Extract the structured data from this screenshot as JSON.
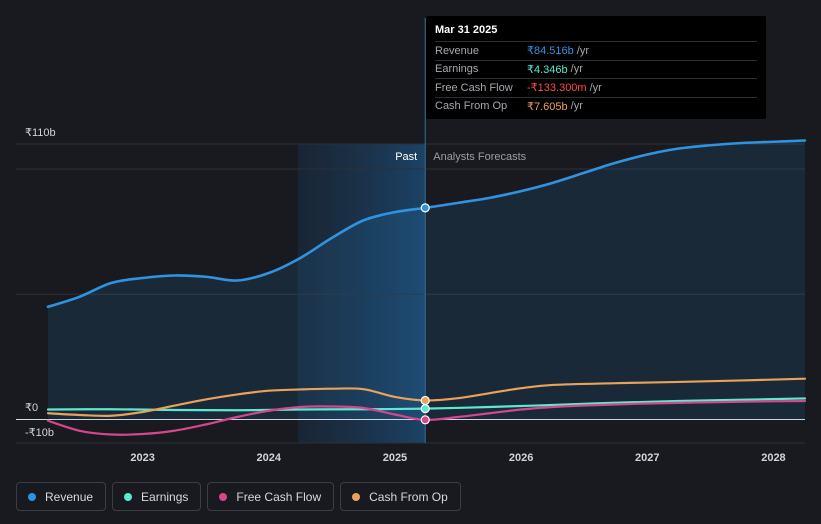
{
  "chart_data": {
    "type": "line",
    "currency_unit": "billions INR",
    "y_tick_labels": [
      "₹110b",
      "₹0",
      "-₹10b"
    ],
    "y_ticks": [
      110,
      0,
      -10
    ],
    "ylim": [
      -11,
      111
    ],
    "xlim": [
      2022.25,
      2028.25
    ],
    "x_tick_labels": [
      "2023",
      "2024",
      "2025",
      "2026",
      "2027",
      "2028"
    ],
    "x_ticks": [
      2023,
      2024,
      2025,
      2026,
      2027,
      2028
    ],
    "past_label": "Past",
    "forecast_label": "Analysts Forecasts",
    "divider_x": 2025.24,
    "past_shade_start_x": 2024.23,
    "series": [
      {
        "key": "revenue",
        "name": "Revenue",
        "color": "#2f94e0",
        "x": [
          2022.25,
          2022.5,
          2022.75,
          2023.0,
          2023.25,
          2023.5,
          2023.75,
          2024.0,
          2024.25,
          2024.5,
          2024.75,
          2025.0,
          2025.24,
          2025.5,
          2025.75,
          2026.0,
          2026.25,
          2026.5,
          2026.75,
          2027.0,
          2027.25,
          2027.5,
          2027.75,
          2028.0,
          2028.25
        ],
        "values": [
          45,
          49,
          54.5,
          56.5,
          57.5,
          57,
          55.5,
          58.5,
          64.5,
          72.5,
          79.5,
          82.8,
          84.5,
          86.5,
          88.5,
          91.2,
          94.5,
          98.5,
          102.5,
          105.8,
          108.2,
          109.5,
          110.4,
          110.9,
          111.4
        ]
      },
      {
        "key": "earnings",
        "name": "Earnings",
        "color": "#5ce8d2",
        "x": [
          2022.25,
          2022.75,
          2023.25,
          2023.75,
          2024.25,
          2024.75,
          2025.24,
          2025.75,
          2026.25,
          2026.75,
          2027.25,
          2027.75,
          2028.25
        ],
        "values": [
          4.0,
          4.1,
          3.8,
          3.7,
          4.0,
          4.1,
          4.346,
          5.0,
          5.8,
          6.7,
          7.4,
          7.9,
          8.4
        ]
      },
      {
        "key": "fcf",
        "name": "Free Cash Flow",
        "color": "#d4478c",
        "x": [
          2022.25,
          2022.5,
          2022.75,
          2023.0,
          2023.25,
          2023.5,
          2023.75,
          2024.0,
          2024.25,
          2024.5,
          2024.75,
          2025.0,
          2025.24,
          2025.5,
          2025.75,
          2026.0,
          2026.25,
          2026.5,
          2027.0,
          2027.5,
          2028.0,
          2028.25
        ],
        "values": [
          -0.5,
          -4.5,
          -6.0,
          -5.8,
          -4.5,
          -2.0,
          1.0,
          3.5,
          5.0,
          5.2,
          4.6,
          2.0,
          -0.1333,
          1.0,
          2.5,
          4.0,
          5.0,
          5.6,
          6.4,
          6.9,
          7.3,
          7.4
        ]
      },
      {
        "key": "cfo",
        "name": "Cash From Op",
        "color": "#e8a25c",
        "x": [
          2022.25,
          2022.5,
          2022.75,
          2023.0,
          2023.25,
          2023.5,
          2023.75,
          2024.0,
          2024.25,
          2024.5,
          2024.75,
          2025.0,
          2025.24,
          2025.5,
          2025.75,
          2026.0,
          2026.25,
          2026.75,
          2027.25,
          2027.75,
          2028.25
        ],
        "values": [
          2.5,
          1.8,
          1.5,
          3.0,
          5.5,
          8.0,
          10.0,
          11.5,
          12.0,
          12.3,
          12.1,
          9.0,
          7.605,
          8.5,
          10.5,
          12.5,
          13.8,
          14.5,
          15.0,
          15.6,
          16.3
        ]
      }
    ]
  },
  "tooltip": {
    "date": "Mar 31 2025",
    "unit": "/yr",
    "rows": [
      {
        "label": "Revenue",
        "value": "₹84.516b",
        "color": "#2f94e0"
      },
      {
        "label": "Earnings",
        "value": "₹4.346b",
        "color": "#5ce8d2"
      },
      {
        "label": "Free Cash Flow",
        "value": "-₹133.300m",
        "color": "#ff4b4b"
      },
      {
        "label": "Cash From Op",
        "value": "₹7.605b",
        "color": "#e8a25c"
      }
    ]
  },
  "legend": [
    {
      "label": "Revenue",
      "color": "#2f94e0"
    },
    {
      "label": "Earnings",
      "color": "#5ce8d2"
    },
    {
      "label": "Free Cash Flow",
      "color": "#d4478c"
    },
    {
      "label": "Cash From Op",
      "color": "#e8a25c"
    }
  ]
}
